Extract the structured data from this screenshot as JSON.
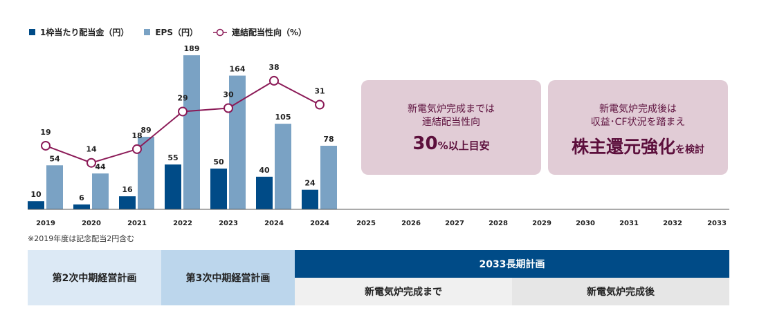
{
  "chart_data": {
    "type": "bar",
    "categories": [
      "2019",
      "2020",
      "2021",
      "2022",
      "2023",
      "2024",
      "2024",
      "2025",
      "2026",
      "2027",
      "2028",
      "2029",
      "2030",
      "2031",
      "2032",
      "2033"
    ],
    "series": [
      {
        "name": "1枠当たり配当金（円）",
        "type": "bar",
        "color": "#004b87",
        "values": [
          10,
          6,
          16,
          55,
          50,
          40,
          24,
          null,
          null,
          null,
          null,
          null,
          null,
          null,
          null,
          null
        ]
      },
      {
        "name": "EPS（円）",
        "type": "bar",
        "color": "#7aa2c4",
        "values": [
          54,
          44,
          89,
          189,
          164,
          105,
          78,
          null,
          null,
          null,
          null,
          null,
          null,
          null,
          null,
          null
        ]
      },
      {
        "name": "連結配当性向（%）",
        "type": "line",
        "color": "#8b1a57",
        "values": [
          19,
          14,
          18,
          29,
          30,
          38,
          31,
          null,
          null,
          null,
          null,
          null,
          null,
          null,
          null,
          null
        ]
      }
    ],
    "legend_position": "top-left",
    "grid": false
  },
  "note": "※2019年度は記念配当2円含む",
  "boxes": [
    {
      "line1": "新電気炉完成までは",
      "line2": "連結配当性向",
      "big": "30",
      "big_suffix": "%以上目安"
    },
    {
      "line1": "新電気炉完成後は",
      "line2": "収益･CF状況を踏まえ",
      "big": "株主還元強化",
      "big_suffix": "を検討"
    }
  ],
  "plans": {
    "plan2": "第2次中期経営計画",
    "plan3": "第3次中期経営計画",
    "long": "2033長期計画",
    "before": "新電気炉完成まで",
    "after": "新電気炉完成後"
  }
}
